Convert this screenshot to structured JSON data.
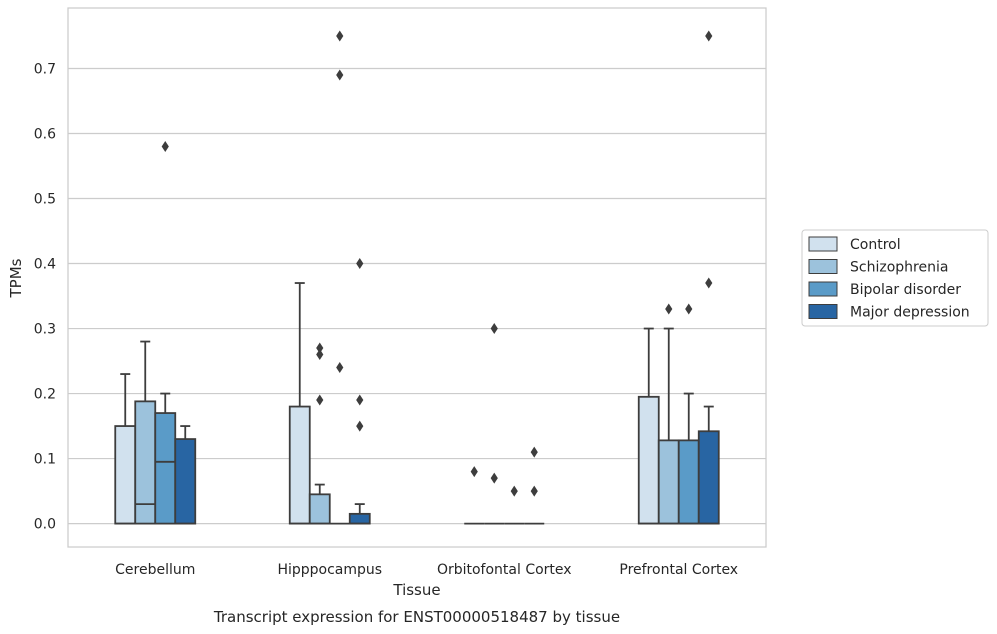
{
  "chart_data": {
    "type": "box",
    "xlabel": "Tissue",
    "ylabel": "TPMs",
    "caption": "Transcript expression for ENST00000518487 by tissue",
    "ylim": [
      -0.036,
      0.793
    ],
    "yticks": [
      "0.0",
      "0.1",
      "0.2",
      "0.3",
      "0.4",
      "0.5",
      "0.6",
      "0.7"
    ],
    "grid": true,
    "legend_position": "right",
    "categories": [
      "Cerebellum",
      "Hipppocampus",
      "Orbitofontal Cortex",
      "Prefrontal Cortex"
    ],
    "series": [
      {
        "name": "Control",
        "color": "#d1e1ee",
        "boxes": [
          {
            "q1": 0.0,
            "median": 0.0,
            "q3": 0.15,
            "whisker_low": 0.0,
            "whisker_high": 0.23,
            "outliers": []
          },
          {
            "q1": 0.0,
            "median": 0.0,
            "q3": 0.18,
            "whisker_low": 0.0,
            "whisker_high": 0.37,
            "outliers": []
          },
          {
            "q1": 0.0,
            "median": 0.0,
            "q3": 0.0,
            "whisker_low": 0.0,
            "whisker_high": 0.0,
            "outliers": [
              0.08
            ]
          },
          {
            "q1": 0.0,
            "median": 0.0,
            "q3": 0.195,
            "whisker_low": 0.0,
            "whisker_high": 0.3,
            "outliers": []
          }
        ]
      },
      {
        "name": "Schizophrenia",
        "color": "#9cc2dc",
        "boxes": [
          {
            "q1": 0.0,
            "median": 0.03,
            "q3": 0.188,
            "whisker_low": 0.0,
            "whisker_high": 0.28,
            "outliers": []
          },
          {
            "q1": 0.0,
            "median": 0.0,
            "q3": 0.045,
            "whisker_low": 0.0,
            "whisker_high": 0.06,
            "outliers": [
              0.19,
              0.26,
              0.27
            ]
          },
          {
            "q1": 0.0,
            "median": 0.0,
            "q3": 0.0,
            "whisker_low": 0.0,
            "whisker_high": 0.0,
            "outliers": [
              0.07,
              0.3
            ]
          },
          {
            "q1": 0.0,
            "median": 0.0,
            "q3": 0.128,
            "whisker_low": 0.0,
            "whisker_high": 0.3,
            "outliers": [
              0.33
            ]
          }
        ]
      },
      {
        "name": "Bipolar disorder",
        "color": "#5a9bc8",
        "boxes": [
          {
            "q1": 0.0,
            "median": 0.095,
            "q3": 0.17,
            "whisker_low": 0.0,
            "whisker_high": 0.2,
            "outliers": [
              0.58
            ]
          },
          {
            "q1": 0.0,
            "median": 0.0,
            "q3": 0.0,
            "whisker_low": 0.0,
            "whisker_high": 0.0,
            "outliers": [
              0.24,
              0.69,
              0.75
            ]
          },
          {
            "q1": 0.0,
            "median": 0.0,
            "q3": 0.0,
            "whisker_low": 0.0,
            "whisker_high": 0.0,
            "outliers": [
              0.05
            ]
          },
          {
            "q1": 0.0,
            "median": 0.0,
            "q3": 0.128,
            "whisker_low": 0.0,
            "whisker_high": 0.2,
            "outliers": [
              0.33
            ]
          }
        ]
      },
      {
        "name": "Major depression",
        "color": "#2865a3",
        "boxes": [
          {
            "q1": 0.0,
            "median": 0.0,
            "q3": 0.13,
            "whisker_low": 0.0,
            "whisker_high": 0.15,
            "outliers": []
          },
          {
            "q1": 0.0,
            "median": 0.0,
            "q3": 0.015,
            "whisker_low": 0.0,
            "whisker_high": 0.03,
            "outliers": [
              0.15,
              0.19,
              0.4
            ]
          },
          {
            "q1": 0.0,
            "median": 0.0,
            "q3": 0.0,
            "whisker_low": 0.0,
            "whisker_high": 0.0,
            "outliers": [
              0.05,
              0.11
            ]
          },
          {
            "q1": 0.0,
            "median": 0.0,
            "q3": 0.142,
            "whisker_low": 0.0,
            "whisker_high": 0.18,
            "outliers": [
              0.37,
              0.75
            ]
          }
        ]
      }
    ]
  }
}
